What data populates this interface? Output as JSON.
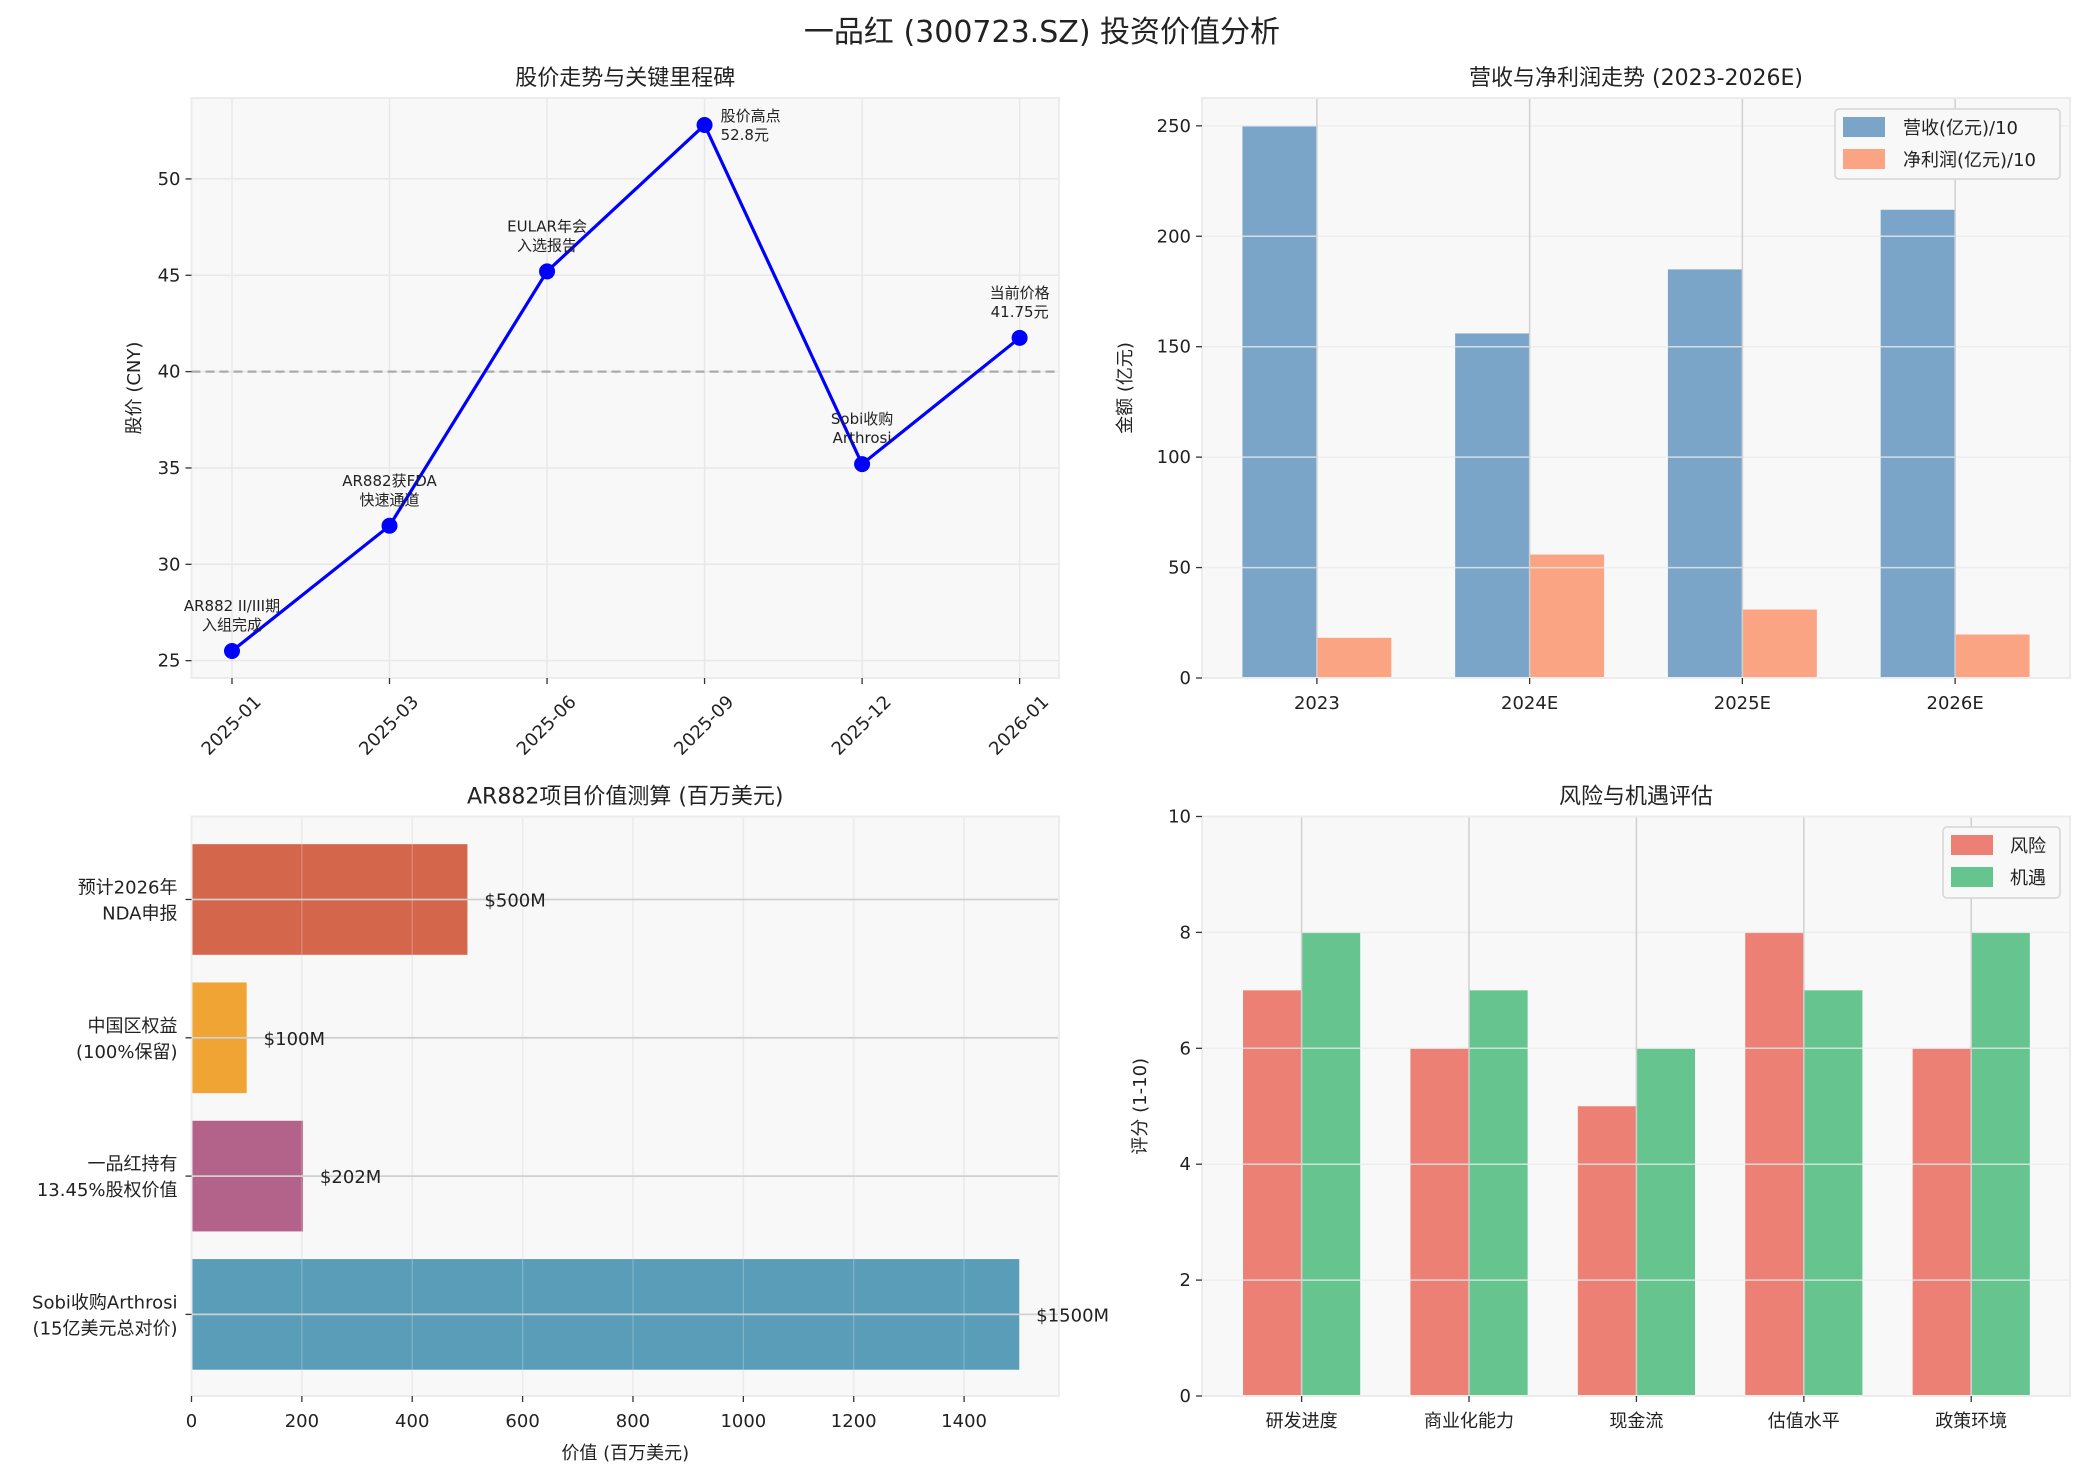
{
  "figure_title": "一品红 (300723.SZ) 投资价值分析",
  "chart_data": [
    {
      "type": "line",
      "title": "股价走势与关键里程碑",
      "ylabel": "股价 (CNY)",
      "xlabel": "",
      "x": [
        "2025-01",
        "2025-03",
        "2025-06",
        "2025-09",
        "2025-12",
        "2026-01"
      ],
      "values": [
        25.5,
        32.0,
        45.2,
        52.8,
        35.2,
        41.75
      ],
      "annotations": [
        [
          "AR882 II/III期",
          "入组完成"
        ],
        [
          "AR882获FDA",
          "快速通道"
        ],
        [
          "EULAR年会",
          "入选报告"
        ],
        [
          "股价高点",
          "52.8元"
        ],
        [
          "Sobi收购",
          "Arthrosi"
        ],
        [
          "当前价格",
          "41.75元"
        ]
      ],
      "reference_line": 40,
      "ylim": [
        24.1,
        54.2
      ],
      "yticks": [
        25,
        30,
        35,
        40,
        45,
        50
      ],
      "grid": true,
      "line_color": "#0000FF",
      "reference_color": "#aaaaaa"
    },
    {
      "type": "bar",
      "title": "营收与净利润走势 (2023-2026E)",
      "ylabel": "金额 (亿元)",
      "xlabel": "",
      "categories": [
        "2023",
        "2024E",
        "2025E",
        "2026E"
      ],
      "series": [
        {
          "name": "营收(亿元)/10",
          "values": [
            250,
            156,
            185,
            212
          ],
          "color": "#7BA5C8"
        },
        {
          "name": "净利润(亿元)/10",
          "values": [
            18.2,
            55.9,
            31,
            19.7
          ],
          "color": "#FBA483"
        }
      ],
      "ylim": [
        0,
        262.6
      ],
      "yticks": [
        0,
        50,
        100,
        150,
        200,
        250
      ],
      "grid": true,
      "legend": "top-right"
    },
    {
      "type": "bar",
      "orientation": "horizontal",
      "title": "AR882项目价值测算 (百万美元)",
      "xlabel": "价值 (百万美元)",
      "ylabel": "",
      "categories": [
        [
          "Sobi收购Arthrosi",
          "(15亿美元总对价)"
        ],
        [
          "一品红持有",
          "13.45%股权价值"
        ],
        [
          "中国区权益",
          "(100%保留)"
        ],
        [
          "预计2026年",
          "NDA申报"
        ]
      ],
      "values": [
        1500,
        202,
        100,
        500
      ],
      "value_labels": [
        "$1500M",
        "$202M",
        "$100M",
        "$500M"
      ],
      "colors": [
        "#599DB9",
        "#B3628A",
        "#F0A433",
        "#D3664B"
      ],
      "xlim": [
        0,
        1572
      ],
      "xticks": [
        0,
        200,
        400,
        600,
        800,
        1000,
        1200,
        1400
      ],
      "grid": true
    },
    {
      "type": "bar",
      "title": "风险与机遇评估",
      "ylabel": "评分 (1-10)",
      "xlabel": "",
      "categories": [
        "研发进度",
        "商业化能力",
        "现金流",
        "估值水平",
        "政策环境"
      ],
      "series": [
        {
          "name": "风险",
          "values": [
            7,
            6,
            5,
            8,
            6
          ],
          "color": "#EC8074"
        },
        {
          "name": "机遇",
          "values": [
            8,
            7,
            6,
            7,
            8
          ],
          "color": "#66C48E"
        }
      ],
      "ylim": [
        0,
        10
      ],
      "yticks": [
        0,
        2,
        4,
        6,
        8,
        10
      ],
      "grid": true,
      "legend": "top-right"
    }
  ]
}
